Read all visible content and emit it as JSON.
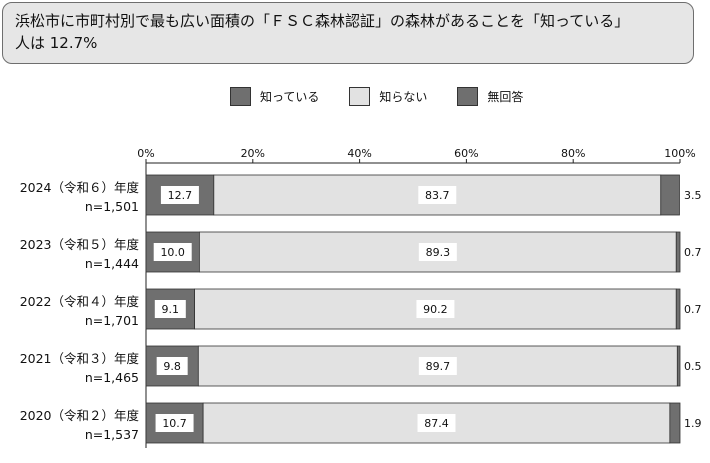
{
  "title": {
    "line1": "浜松市に市町村別で最も広い面積の「ＦＳＣ森林認証」の森林があることを「知っている」",
    "line2": "人は 12.7%"
  },
  "legend": [
    {
      "label": "知っている",
      "color": "#6f6f6f"
    },
    {
      "label": "知らない",
      "color": "#e2e2e2"
    },
    {
      "label": "無回答",
      "color": "#6f6f6f"
    }
  ],
  "chart_data": {
    "type": "bar",
    "orientation": "horizontal",
    "stacked": true,
    "xlim": [
      0,
      100
    ],
    "xticks": [
      "0%",
      "20%",
      "40%",
      "60%",
      "80%",
      "100%"
    ],
    "xtick_values": [
      0,
      20,
      40,
      60,
      80,
      100
    ],
    "categories": [
      {
        "year": "2024（令和６）年度",
        "n": "n=1,501"
      },
      {
        "year": "2023（令和５）年度",
        "n": "n=1,444"
      },
      {
        "year": "2022（令和４）年度",
        "n": "n=1,701"
      },
      {
        "year": "2021（令和３）年度",
        "n": "n=1,465"
      },
      {
        "year": "2020（令和２）年度",
        "n": "n=1,537"
      }
    ],
    "series": [
      {
        "name": "知っている",
        "color": "#6f6f6f",
        "values": [
          12.7,
          10.0,
          9.1,
          9.8,
          10.7
        ],
        "labels": [
          "12.7",
          "10.0",
          "9.1",
          "9.8",
          "10.7"
        ]
      },
      {
        "name": "知らない",
        "color": "#e2e2e2",
        "values": [
          83.7,
          89.3,
          90.2,
          89.7,
          87.4
        ],
        "labels": [
          "83.7",
          "89.3",
          "90.2",
          "89.7",
          "87.4"
        ]
      },
      {
        "name": "無回答",
        "color": "#6f6f6f",
        "values": [
          3.5,
          0.7,
          0.7,
          0.5,
          1.9
        ],
        "labels": [
          "3.5",
          "0.7",
          "0.7",
          "0.5",
          "1.9"
        ]
      }
    ]
  }
}
